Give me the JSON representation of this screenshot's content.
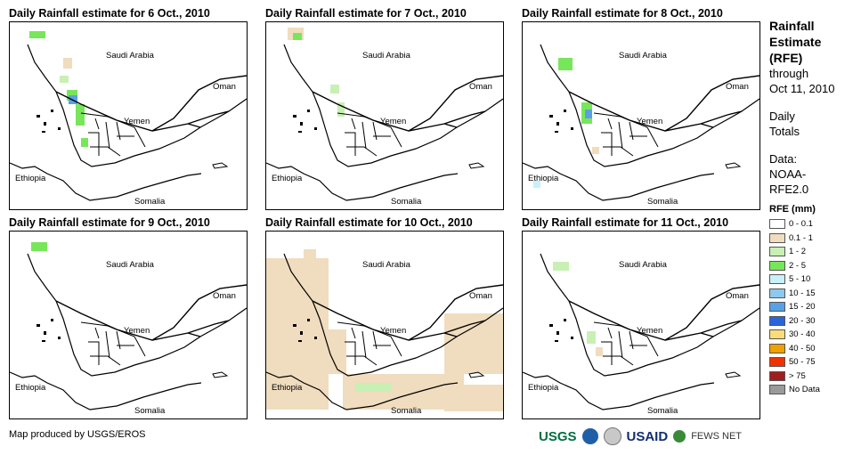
{
  "panels": [
    {
      "title": "Daily Rainfall estimate for 6 Oct., 2010"
    },
    {
      "title": "Daily Rainfall estimate for 7 Oct., 2010"
    },
    {
      "title": "Daily Rainfall estimate for 8 Oct., 2010"
    },
    {
      "title": "Daily Rainfall estimate for 9 Oct., 2010"
    },
    {
      "title": "Daily Rainfall estimate for 10 Oct., 2010"
    },
    {
      "title": "Daily Rainfall estimate for 11 Oct., 2010"
    }
  ],
  "map_labels": {
    "saudi": "Saudi Arabia",
    "oman": "Oman",
    "yemen": "Yemen",
    "ethiopia": "Ethiopia",
    "somalia": "Somalia"
  },
  "side": {
    "title1": "Rainfall",
    "title2": "Estimate",
    "title3": "(RFE)",
    "through": "through",
    "date": "Oct 11, 2010",
    "daily": "Daily",
    "totals": "Totals",
    "data_label": "Data:",
    "data1": "NOAA-",
    "data2": "RFE2.0",
    "legend_title": "RFE (mm)"
  },
  "legend": [
    {
      "label": "0 - 0.1",
      "color": "#ffffff"
    },
    {
      "label": "0.1 - 1",
      "color": "#f0dcbe"
    },
    {
      "label": "1 - 2",
      "color": "#c8f0b4"
    },
    {
      "label": "2 - 5",
      "color": "#78e65a"
    },
    {
      "label": "5 - 10",
      "color": "#c8f0fa"
    },
    {
      "label": "10 - 15",
      "color": "#8cc8f0"
    },
    {
      "label": "15 - 20",
      "color": "#5aa0e6"
    },
    {
      "label": "20 - 30",
      "color": "#2864dc"
    },
    {
      "label": "30 - 40",
      "color": "#fadc78"
    },
    {
      "label": "40 - 50",
      "color": "#f0a000"
    },
    {
      "label": "50 - 75",
      "color": "#f03200"
    },
    {
      "label": "> 75",
      "color": "#a01e1e"
    },
    {
      "label": "No Data",
      "color": "#9a9a9a"
    }
  ],
  "credit": "Map produced by USGS/EROS",
  "logos": {
    "usgs": "USGS",
    "usaid": "USAID",
    "fews": "FEWS NET"
  }
}
